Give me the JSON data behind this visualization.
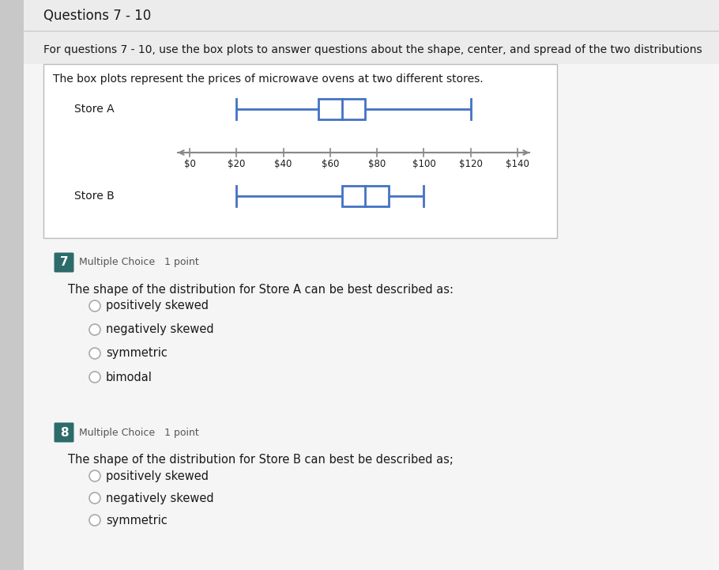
{
  "title_top": "Questions 7 - 10",
  "subtitle": "For questions 7 - 10, use the box plots to answer questions about the shape, center, and spread of the two distributions",
  "box_title": "The box plots represent the prices of microwave ovens at two different stores.",
  "store_a_label": "Store A",
  "store_b_label": "Store B",
  "store_a": {
    "min": 20,
    "q1": 55,
    "median": 65,
    "q3": 75,
    "max": 120
  },
  "store_b": {
    "min": 20,
    "q1": 65,
    "median": 75,
    "q3": 85,
    "max": 100
  },
  "axis_min": 0,
  "axis_max": 140,
  "axis_ticks": [
    0,
    20,
    40,
    60,
    80,
    100,
    120,
    140
  ],
  "axis_tick_labels": [
    "$0",
    "$20",
    "$40",
    "$60",
    "$80",
    "$100",
    "$120",
    "$140"
  ],
  "box_color": "white",
  "box_edge_color": "#4472C4",
  "whisker_color": "#4472C4",
  "q7_num": "7",
  "q7_type": "Multiple Choice   1 point",
  "q7_question": "The shape of the distribution for Store A can be best described as:",
  "q7_options": [
    "positively skewed",
    "negatively skewed",
    "symmetric",
    "bimodal"
  ],
  "q8_num": "8",
  "q8_type": "Multiple Choice   1 point",
  "q8_question": "The shape of the distribution for Store B can best be described as;",
  "q8_options": [
    "positively skewed",
    "negatively skewed",
    "symmetric"
  ],
  "bg_color": "#e8e8e8",
  "main_bg": "#f5f5f5",
  "panel_bg": "white",
  "left_sidebar_color": "#c8c8c8",
  "num_badge_color": "#2d6b6b",
  "num_badge_text_color": "white",
  "line_width": 2.0,
  "axis_line_color": "#888888",
  "text_color_dark": "#1a1a1a",
  "text_color_gray": "#555555"
}
